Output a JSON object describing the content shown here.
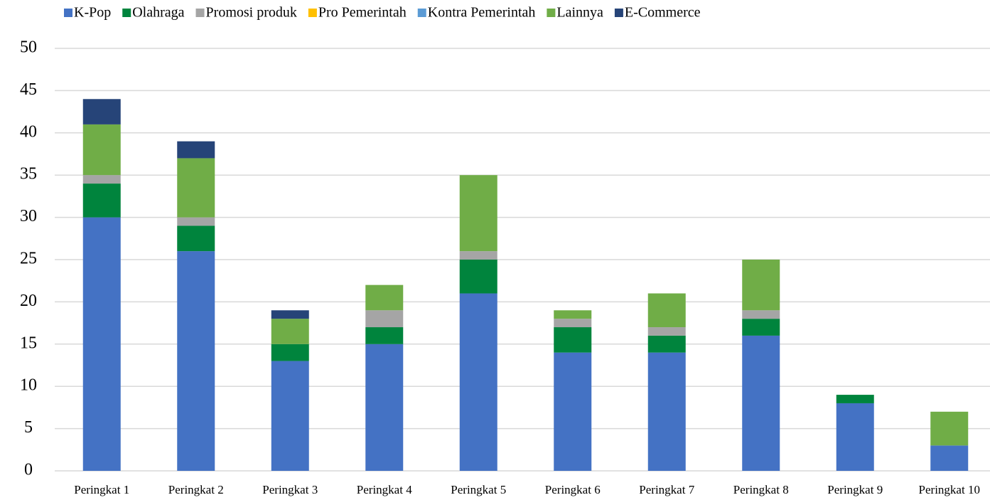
{
  "chart_data": {
    "type": "stacked_bar",
    "categories": [
      "Peringkat 1",
      "Peringkat 2",
      "Peringkat 3",
      "Peringkat 4",
      "Peringkat 5",
      "Peringkat 6",
      "Peringkat 7",
      "Peringkat 8",
      "Peringkat 9",
      "Peringkat 10"
    ],
    "series": [
      {
        "name": "K-Pop",
        "color": "#4472c4",
        "values": [
          30,
          26,
          13,
          15,
          21,
          14,
          14,
          16,
          8,
          3
        ]
      },
      {
        "name": "Olahraga",
        "color": "#00843d",
        "values": [
          4,
          3,
          2,
          2,
          4,
          3,
          2,
          2,
          1,
          0
        ]
      },
      {
        "name": "Promosi produk",
        "color": "#a5a5a5",
        "values": [
          1,
          1,
          0,
          2,
          1,
          1,
          1,
          1,
          0,
          0
        ]
      },
      {
        "name": "Pro Pemerintah",
        "color": "#ffc000",
        "values": [
          0,
          0,
          0,
          0,
          0,
          0,
          0,
          0,
          0,
          0
        ]
      },
      {
        "name": "Kontra Pemerintah",
        "color": "#5b9bd5",
        "values": [
          0,
          0,
          0,
          0,
          0,
          0,
          0,
          0,
          0,
          0
        ]
      },
      {
        "name": "Lainnya",
        "color": "#70ad47",
        "values": [
          6,
          7,
          3,
          3,
          9,
          1,
          4,
          6,
          0,
          4
        ]
      },
      {
        "name": "E-Commerce",
        "color": "#264478",
        "values": [
          3,
          2,
          1,
          0,
          0,
          0,
          0,
          0,
          0,
          0
        ]
      }
    ],
    "ylim": [
      0,
      50
    ],
    "yticks": [
      0,
      5,
      10,
      15,
      20,
      25,
      30,
      35,
      40,
      45,
      50
    ],
    "grid": true,
    "legend": "top"
  }
}
